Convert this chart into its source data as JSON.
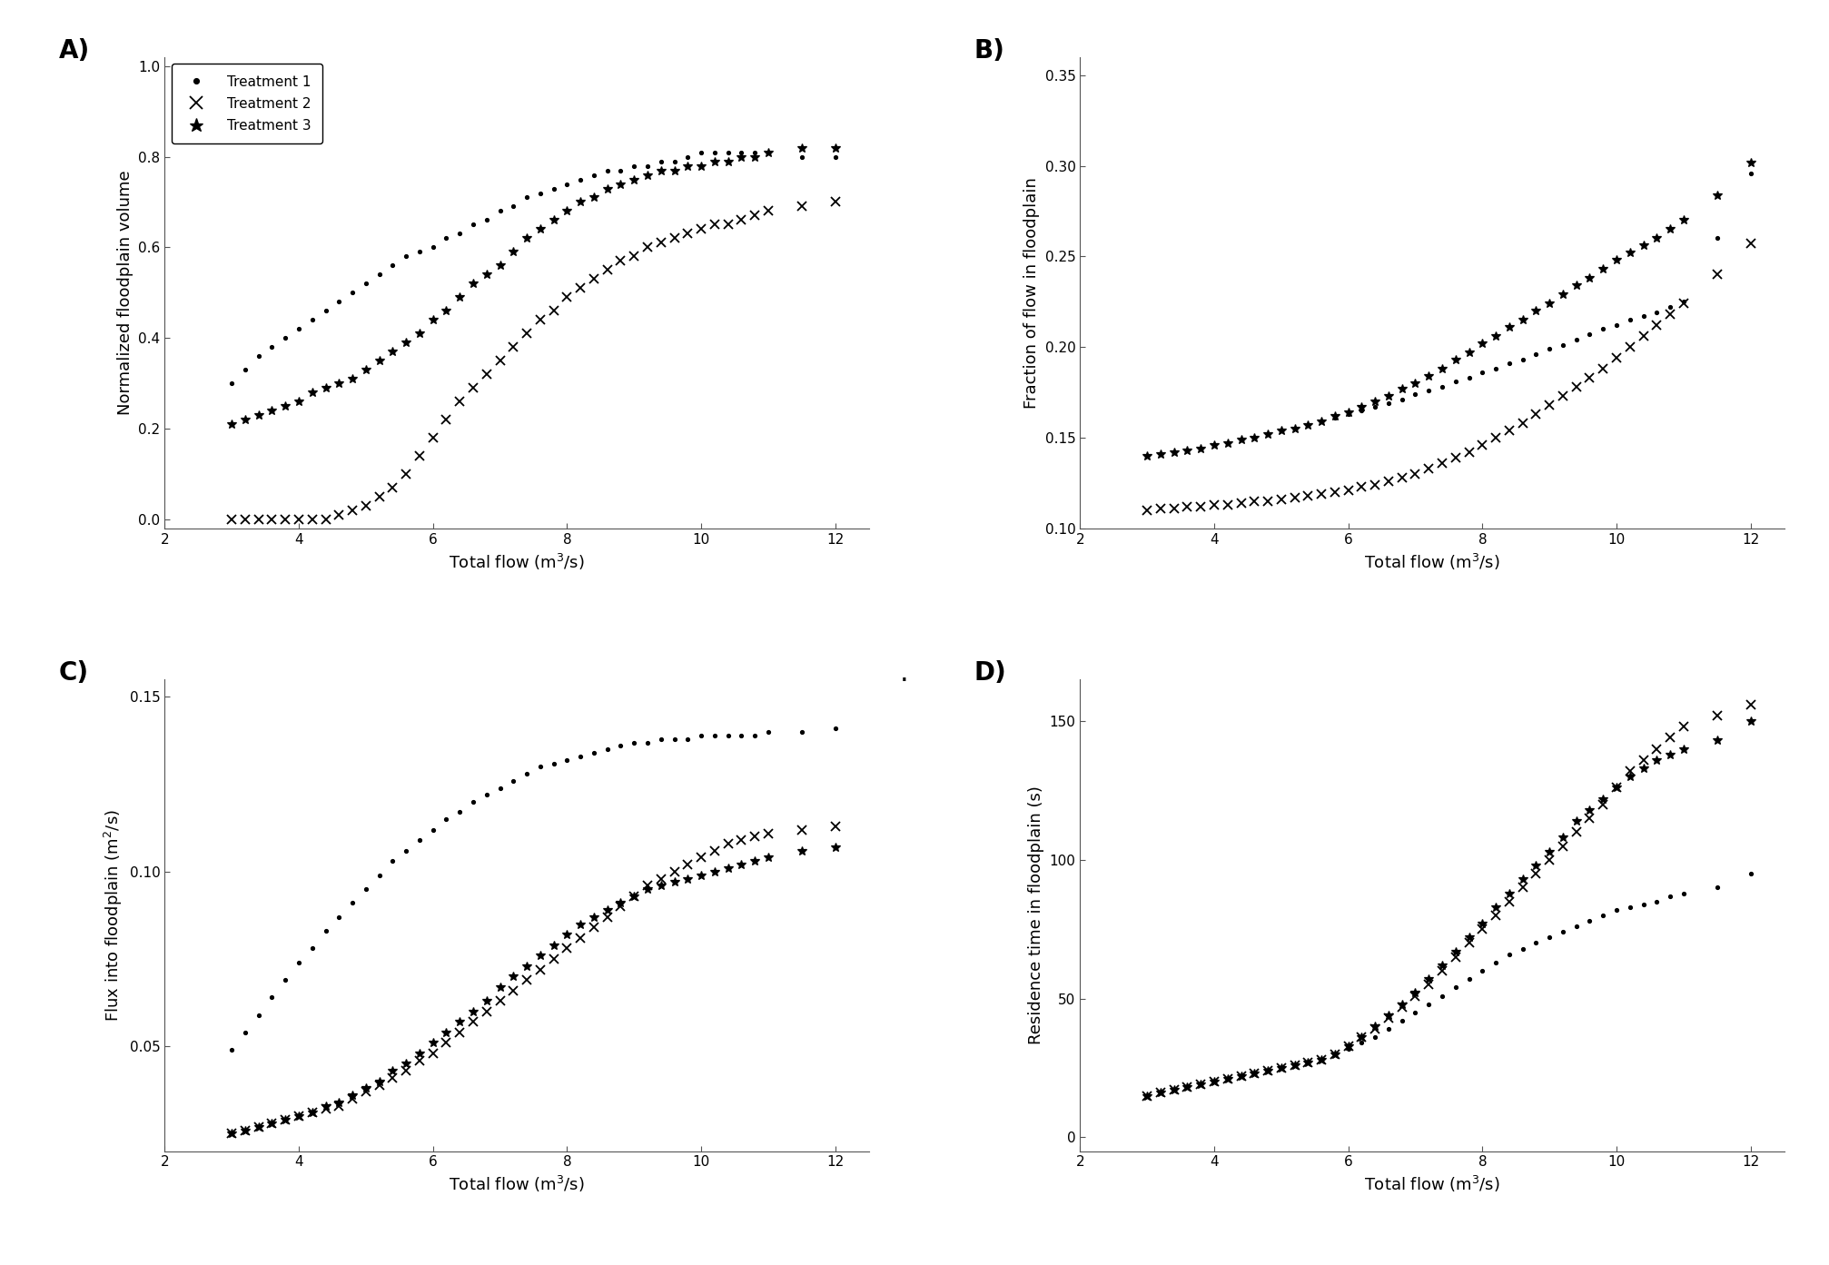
{
  "title_A": "A)",
  "title_B": "B)",
  "title_C": "C)",
  "title_D": "D)",
  "xlabel": "Total flow (m$^3$/s)",
  "ylabel_A": "Normalized floodplain volume",
  "ylabel_B": "Fraction of flow in floodplain",
  "ylabel_C": "Flux into floodplain (m$^2$/s)",
  "ylabel_D": "Residence time in floodplain (s)",
  "legend_labels": [
    "Treatment 1",
    "Treatment 2",
    "Treatment 3"
  ],
  "xlim": [
    2,
    12.5
  ],
  "xticks": [
    2,
    4,
    6,
    8,
    10,
    12
  ],
  "ylim_A": [
    -0.02,
    1.02
  ],
  "yticks_A": [
    0,
    0.2,
    0.4,
    0.6,
    0.8,
    1.0
  ],
  "ylim_B": [
    0.1,
    0.36
  ],
  "yticks_B": [
    0.1,
    0.15,
    0.2,
    0.25,
    0.3,
    0.35
  ],
  "ylim_C": [
    0.02,
    0.155
  ],
  "yticks_C": [
    0.05,
    0.1,
    0.15
  ],
  "ylim_D": [
    -5,
    165
  ],
  "yticks_D": [
    0,
    50,
    100,
    150
  ],
  "x_T1": [
    3.0,
    3.2,
    3.4,
    3.6,
    3.8,
    4.0,
    4.2,
    4.4,
    4.6,
    4.8,
    5.0,
    5.2,
    5.4,
    5.6,
    5.8,
    6.0,
    6.2,
    6.4,
    6.6,
    6.8,
    7.0,
    7.2,
    7.4,
    7.6,
    7.8,
    8.0,
    8.2,
    8.4,
    8.6,
    8.8,
    9.0,
    9.2,
    9.4,
    9.6,
    9.8,
    10.0,
    10.2,
    10.4,
    10.6,
    10.8,
    11.0,
    11.5,
    12.0
  ],
  "x_T2": [
    3.0,
    3.2,
    3.4,
    3.6,
    3.8,
    4.0,
    4.2,
    4.4,
    4.6,
    4.8,
    5.0,
    5.2,
    5.4,
    5.6,
    5.8,
    6.0,
    6.2,
    6.4,
    6.6,
    6.8,
    7.0,
    7.2,
    7.4,
    7.6,
    7.8,
    8.0,
    8.2,
    8.4,
    8.6,
    8.8,
    9.0,
    9.2,
    9.4,
    9.6,
    9.8,
    10.0,
    10.2,
    10.4,
    10.6,
    10.8,
    11.0,
    11.5,
    12.0
  ],
  "x_T3": [
    3.0,
    3.2,
    3.4,
    3.6,
    3.8,
    4.0,
    4.2,
    4.4,
    4.6,
    4.8,
    5.0,
    5.2,
    5.4,
    5.6,
    5.8,
    6.0,
    6.2,
    6.4,
    6.6,
    6.8,
    7.0,
    7.2,
    7.4,
    7.6,
    7.8,
    8.0,
    8.2,
    8.4,
    8.6,
    8.8,
    9.0,
    9.2,
    9.4,
    9.6,
    9.8,
    10.0,
    10.2,
    10.4,
    10.6,
    10.8,
    11.0,
    11.5,
    12.0
  ],
  "A_T1": [
    0.3,
    0.33,
    0.36,
    0.38,
    0.4,
    0.42,
    0.44,
    0.46,
    0.48,
    0.5,
    0.52,
    0.54,
    0.56,
    0.58,
    0.59,
    0.6,
    0.62,
    0.63,
    0.65,
    0.66,
    0.68,
    0.69,
    0.71,
    0.72,
    0.73,
    0.74,
    0.75,
    0.76,
    0.77,
    0.77,
    0.78,
    0.78,
    0.79,
    0.79,
    0.8,
    0.81,
    0.81,
    0.81,
    0.81,
    0.81,
    0.81,
    0.8,
    0.8
  ],
  "A_T2": [
    0.0,
    0.0,
    0.0,
    0.0,
    0.0,
    0.0,
    0.0,
    0.0,
    0.01,
    0.02,
    0.03,
    0.05,
    0.07,
    0.1,
    0.14,
    0.18,
    0.22,
    0.26,
    0.29,
    0.32,
    0.35,
    0.38,
    0.41,
    0.44,
    0.46,
    0.49,
    0.51,
    0.53,
    0.55,
    0.57,
    0.58,
    0.6,
    0.61,
    0.62,
    0.63,
    0.64,
    0.65,
    0.65,
    0.66,
    0.67,
    0.68,
    0.69,
    0.7
  ],
  "A_T3": [
    0.21,
    0.22,
    0.23,
    0.24,
    0.25,
    0.26,
    0.28,
    0.29,
    0.3,
    0.31,
    0.33,
    0.35,
    0.37,
    0.39,
    0.41,
    0.44,
    0.46,
    0.49,
    0.52,
    0.54,
    0.56,
    0.59,
    0.62,
    0.64,
    0.66,
    0.68,
    0.7,
    0.71,
    0.73,
    0.74,
    0.75,
    0.76,
    0.77,
    0.77,
    0.78,
    0.78,
    0.79,
    0.79,
    0.8,
    0.8,
    0.81,
    0.82,
    0.82
  ],
  "B_T1": [
    0.14,
    0.141,
    0.142,
    0.143,
    0.144,
    0.146,
    0.147,
    0.149,
    0.15,
    0.152,
    0.154,
    0.155,
    0.157,
    0.159,
    0.161,
    0.163,
    0.165,
    0.167,
    0.169,
    0.171,
    0.174,
    0.176,
    0.178,
    0.181,
    0.183,
    0.186,
    0.188,
    0.191,
    0.193,
    0.196,
    0.199,
    0.201,
    0.204,
    0.207,
    0.21,
    0.212,
    0.215,
    0.217,
    0.219,
    0.222,
    0.225,
    0.26,
    0.296
  ],
  "B_T2": [
    0.11,
    0.111,
    0.111,
    0.112,
    0.112,
    0.113,
    0.113,
    0.114,
    0.115,
    0.115,
    0.116,
    0.117,
    0.118,
    0.119,
    0.12,
    0.121,
    0.123,
    0.124,
    0.126,
    0.128,
    0.13,
    0.133,
    0.136,
    0.139,
    0.142,
    0.146,
    0.15,
    0.154,
    0.158,
    0.163,
    0.168,
    0.173,
    0.178,
    0.183,
    0.188,
    0.194,
    0.2,
    0.206,
    0.212,
    0.218,
    0.224,
    0.24,
    0.257
  ],
  "B_T3": [
    0.14,
    0.141,
    0.142,
    0.143,
    0.144,
    0.146,
    0.147,
    0.149,
    0.15,
    0.152,
    0.154,
    0.155,
    0.157,
    0.159,
    0.162,
    0.164,
    0.167,
    0.17,
    0.173,
    0.177,
    0.18,
    0.184,
    0.188,
    0.193,
    0.197,
    0.202,
    0.206,
    0.211,
    0.215,
    0.22,
    0.224,
    0.229,
    0.234,
    0.238,
    0.243,
    0.248,
    0.252,
    0.256,
    0.26,
    0.265,
    0.27,
    0.284,
    0.302
  ],
  "C_T1": [
    0.049,
    0.054,
    0.059,
    0.064,
    0.069,
    0.074,
    0.078,
    0.083,
    0.087,
    0.091,
    0.095,
    0.099,
    0.103,
    0.106,
    0.109,
    0.112,
    0.115,
    0.117,
    0.12,
    0.122,
    0.124,
    0.126,
    0.128,
    0.13,
    0.131,
    0.132,
    0.133,
    0.134,
    0.135,
    0.136,
    0.137,
    0.137,
    0.138,
    0.138,
    0.138,
    0.139,
    0.139,
    0.139,
    0.139,
    0.139,
    0.14,
    0.14,
    0.141
  ],
  "C_T2": [
    0.025,
    0.026,
    0.027,
    0.028,
    0.029,
    0.03,
    0.031,
    0.032,
    0.033,
    0.035,
    0.037,
    0.039,
    0.041,
    0.043,
    0.046,
    0.048,
    0.051,
    0.054,
    0.057,
    0.06,
    0.063,
    0.066,
    0.069,
    0.072,
    0.075,
    0.078,
    0.081,
    0.084,
    0.087,
    0.09,
    0.093,
    0.096,
    0.098,
    0.1,
    0.102,
    0.104,
    0.106,
    0.108,
    0.109,
    0.11,
    0.111,
    0.112,
    0.113
  ],
  "C_T3": [
    0.025,
    0.026,
    0.027,
    0.028,
    0.029,
    0.03,
    0.031,
    0.033,
    0.034,
    0.036,
    0.038,
    0.04,
    0.043,
    0.045,
    0.048,
    0.051,
    0.054,
    0.057,
    0.06,
    0.063,
    0.067,
    0.07,
    0.073,
    0.076,
    0.079,
    0.082,
    0.085,
    0.087,
    0.089,
    0.091,
    0.093,
    0.095,
    0.096,
    0.097,
    0.098,
    0.099,
    0.1,
    0.101,
    0.102,
    0.103,
    0.104,
    0.106,
    0.107
  ],
  "D_T1": [
    15,
    16,
    17,
    18,
    19,
    20,
    21,
    22,
    23,
    24,
    25,
    26,
    27,
    28,
    30,
    32,
    34,
    36,
    39,
    42,
    45,
    48,
    51,
    54,
    57,
    60,
    63,
    66,
    68,
    70,
    72,
    74,
    76,
    78,
    80,
    82,
    83,
    84,
    85,
    87,
    88,
    90,
    95
  ],
  "D_T2": [
    15,
    16,
    17,
    18,
    19,
    20,
    21,
    22,
    23,
    24,
    25,
    26,
    27,
    28,
    30,
    33,
    36,
    39,
    43,
    47,
    51,
    55,
    60,
    65,
    70,
    75,
    80,
    85,
    90,
    95,
    100,
    105,
    110,
    115,
    120,
    126,
    132,
    136,
    140,
    144,
    148,
    152,
    156
  ],
  "D_T3": [
    15,
    16,
    17,
    18,
    19,
    20,
    21,
    22,
    23,
    24,
    25,
    26,
    27,
    28,
    30,
    33,
    36,
    40,
    44,
    48,
    52,
    57,
    62,
    67,
    72,
    77,
    83,
    88,
    93,
    98,
    103,
    108,
    114,
    118,
    122,
    126,
    130,
    133,
    136,
    138,
    140,
    143,
    150
  ]
}
